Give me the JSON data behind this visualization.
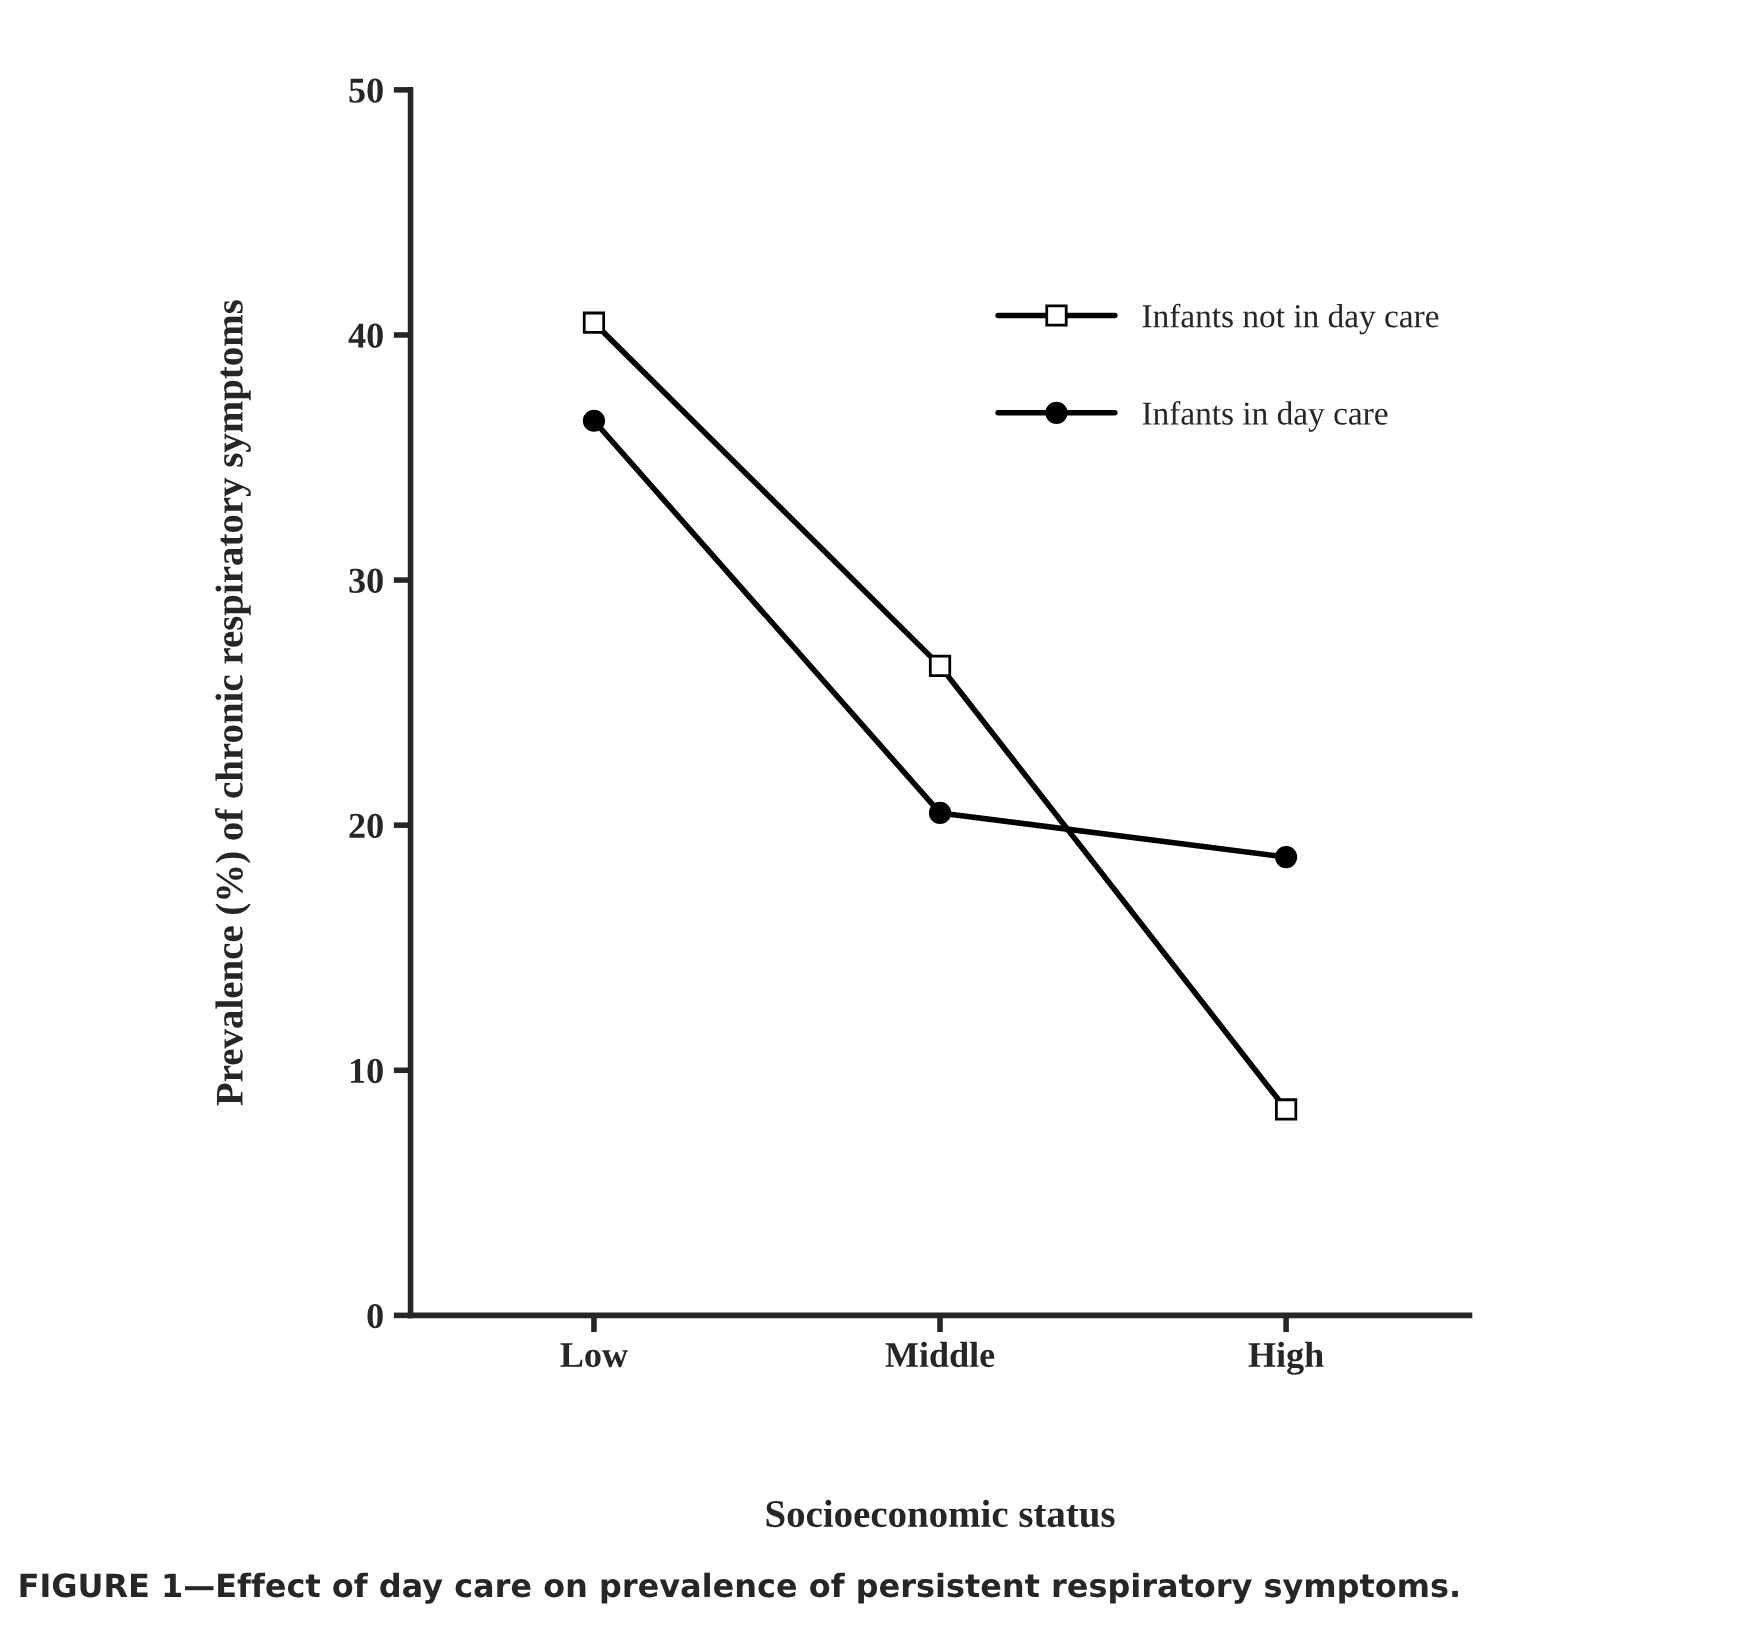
{
  "chart_data": {
    "type": "line",
    "xlabel": "Socioeconomic status",
    "ylabel": "Prevalence (%) of chronic respiratory symptoms",
    "categories": [
      "Low",
      "Middle",
      "High"
    ],
    "series": [
      {
        "name": "Infants not in day care",
        "color": "#000000",
        "marker": "square",
        "values": [
          40.5,
          26.5,
          8.4
        ]
      },
      {
        "name": "Infants in day care",
        "color": "#000000",
        "marker": "circle",
        "values": [
          36.5,
          20.5,
          18.7
        ]
      }
    ],
    "ylim": [
      0,
      50
    ],
    "yticks": [
      0,
      10,
      20,
      30,
      40,
      50
    ],
    "grid": false,
    "legend": "top right",
    "annotations": [
      "FIGURE 1—Effect of day care on prevalence of persistent respiratory symptoms."
    ]
  }
}
